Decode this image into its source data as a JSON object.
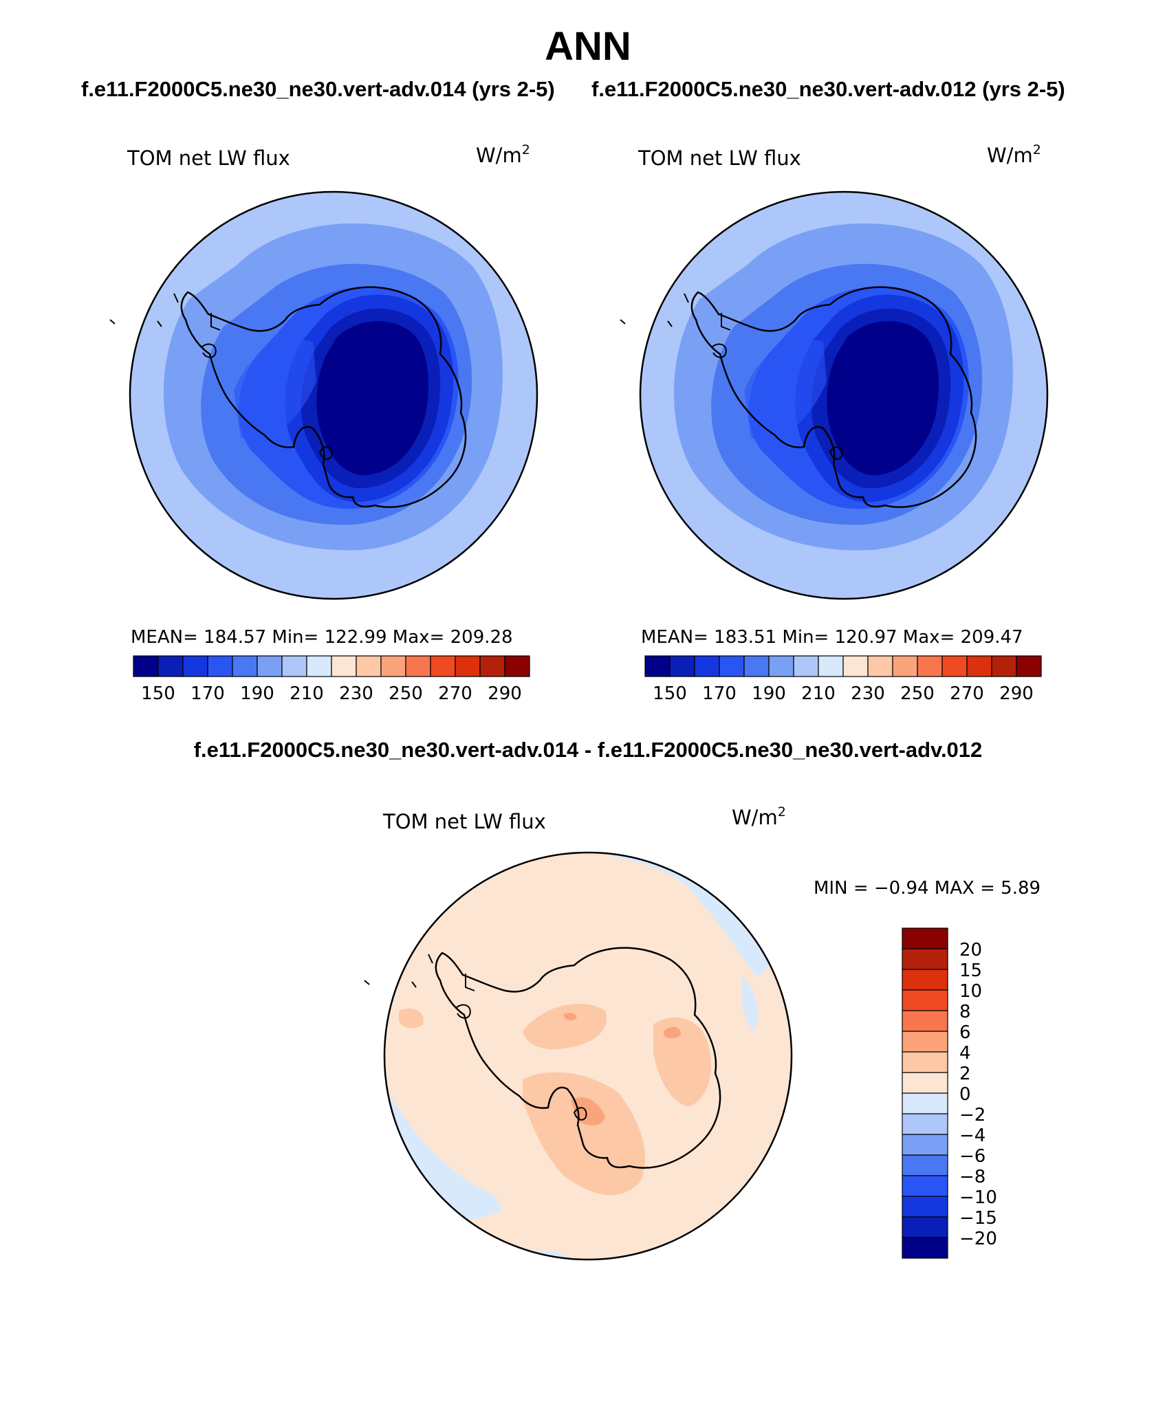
{
  "figure": {
    "title": "ANN",
    "run_a": "f.e11.F2000C5.ne30_ne30.vert-adv.014 (yrs 2-5)",
    "run_b": "f.e11.F2000C5.ne30_ne30.vert-adv.012 (yrs 2-5)",
    "diff_title": "f.e11.F2000C5.ne30_ne30.vert-adv.014 - f.e11.F2000C5.ne30_ne30.vert-adv.012"
  },
  "panels": [
    {
      "variable": "TOM net LW flux",
      "units_base": "W/m",
      "units_exp": "2",
      "stats": "MEAN= 184.57   Min= 122.99   Max= 209.28",
      "colorbar_labels": [
        "150",
        "170",
        "190",
        "210",
        "230",
        "250",
        "270",
        "290"
      ]
    },
    {
      "variable": "TOM net LW flux",
      "units_base": "W/m",
      "units_exp": "2",
      "stats": "MEAN= 183.51   Min= 120.97   Max= 209.47",
      "colorbar_labels": [
        "150",
        "170",
        "190",
        "210",
        "230",
        "250",
        "270",
        "290"
      ]
    },
    {
      "variable": "TOM net LW flux",
      "units_base": "W/m",
      "units_exp": "2",
      "stats": "MIN =   −0.94  MAX =     5.89",
      "colorbar_labels": [
        "20",
        "15",
        "10",
        "8",
        "6",
        "4",
        "2",
        "0",
        "−2",
        "−4",
        "−6",
        "−8",
        "−10",
        "−15",
        "−20"
      ]
    }
  ],
  "colors": {
    "seq_palette": [
      "#00008b",
      "#0a1fb8",
      "#1437e0",
      "#2a55f5",
      "#4a78f2",
      "#7aa0f5",
      "#adc7fa",
      "#d8e9fc",
      "#fde5d3",
      "#fcc8a6",
      "#fba47c",
      "#f8754d",
      "#f04a22",
      "#dd300c",
      "#b5200a",
      "#8b0000"
    ],
    "diff_palette": [
      "#8b0000",
      "#b5200a",
      "#dd300c",
      "#f04a22",
      "#f8754d",
      "#fba47c",
      "#fcc8a6",
      "#fde5d3",
      "#d8e9fc",
      "#adc7fa",
      "#7aa0f5",
      "#4a78f2",
      "#2a55f5",
      "#1437e0",
      "#0a1fb8",
      "#00008b"
    ]
  }
}
